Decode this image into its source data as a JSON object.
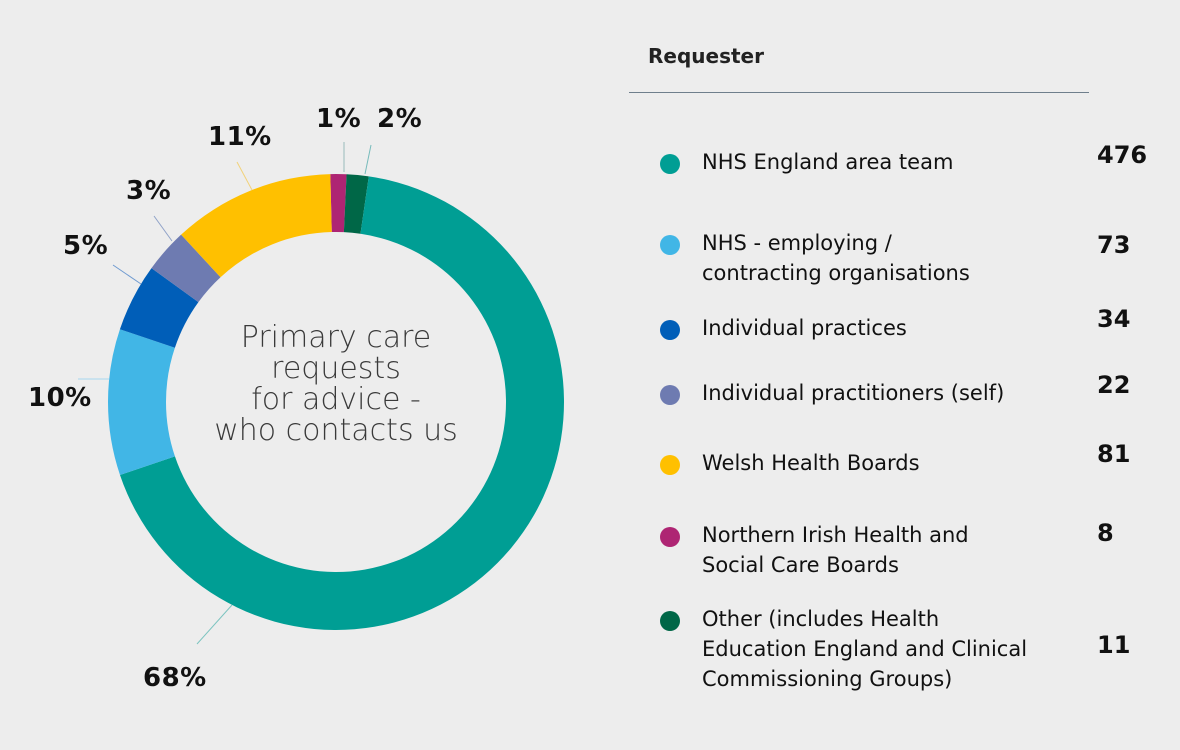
{
  "chart_data": {
    "type": "pie",
    "subtype": "donut",
    "title": "Primary care requests for advice - who contacts us",
    "legend_title": "Requester",
    "legend_position": "right",
    "categories": [
      "NHS England area team",
      "NHS - employing / contracting organisations",
      "Individual practices",
      "Individual practitioners (self)",
      "Welsh Health Boards",
      "Northern Irish Health and Social Care Boards",
      "Other (includes Health Education England and Clinical Commissioning Groups)"
    ],
    "values": [
      476,
      73,
      34,
      22,
      81,
      8,
      11
    ],
    "percent_labels": [
      "68%",
      "10%",
      "5%",
      "3%",
      "11%",
      "1%",
      "2%"
    ],
    "colors": [
      "#009e94",
      "#41b6e6",
      "#005eb8",
      "#6e7bb1",
      "#ffc000",
      "#ae2573",
      "#006747"
    ]
  },
  "center_label": [
    "Primary care",
    "requests",
    "for advice -",
    "who contacts us"
  ],
  "legend": {
    "title": "Requester",
    "items": [
      {
        "lines": [
          "NHS England area team"
        ],
        "value": "476",
        "color": "#009e94"
      },
      {
        "lines": [
          "NHS - employing /",
          "contracting organisations"
        ],
        "value": "73",
        "color": "#41b6e6"
      },
      {
        "lines": [
          "Individual practices"
        ],
        "value": "34",
        "color": "#005eb8"
      },
      {
        "lines": [
          "Individual practitioners (self)"
        ],
        "value": "22",
        "color": "#6e7bb1"
      },
      {
        "lines": [
          "Welsh Health Boards"
        ],
        "value": "81",
        "color": "#ffc000"
      },
      {
        "lines": [
          "Northern Irish Health and",
          "Social Care Boards"
        ],
        "value": "8",
        "color": "#ae2573"
      },
      {
        "lines": [
          "Other (includes Health",
          "Education England and Clinical",
          "Commissioning Groups)"
        ],
        "value": "11",
        "color": "#006747"
      }
    ]
  },
  "pct_labels": {
    "nhs_england": "68%",
    "nhs_employing": "10%",
    "practices": "5%",
    "practitioners": "3%",
    "welsh": "11%",
    "ni": "1%",
    "other": "2%"
  }
}
